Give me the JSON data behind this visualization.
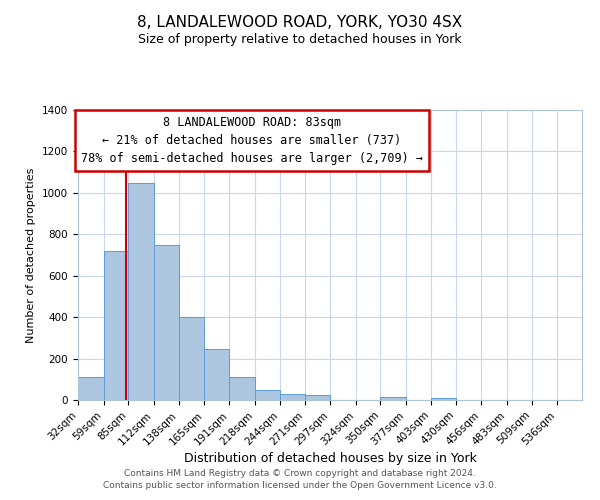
{
  "title1": "8, LANDALEWOOD ROAD, YORK, YO30 4SX",
  "title2": "Size of property relative to detached houses in York",
  "xlabel": "Distribution of detached houses by size in York",
  "ylabel": "Number of detached properties",
  "footer1": "Contains HM Land Registry data © Crown copyright and database right 2024.",
  "footer2": "Contains public sector information licensed under the Open Government Licence v3.0.",
  "bar_edges": [
    32,
    59,
    85,
    112,
    138,
    165,
    191,
    218,
    244,
    271,
    297,
    324,
    350,
    377,
    403,
    430,
    456,
    483,
    509,
    536,
    562
  ],
  "bar_heights": [
    110,
    720,
    1050,
    750,
    400,
    245,
    110,
    50,
    30,
    25,
    0,
    0,
    15,
    0,
    10,
    0,
    0,
    0,
    0,
    0
  ],
  "bar_color": "#adc6e0",
  "bar_edgecolor": "#5b9bd5",
  "red_line_x": 83,
  "red_line_color": "#cc0000",
  "annotation_line1": "8 LANDALEWOOD ROAD: 83sqm",
  "annotation_line2": "← 21% of detached houses are smaller (737)",
  "annotation_line3": "78% of semi-detached houses are larger (2,709) →",
  "annotation_box_edgecolor": "#cc0000",
  "annotation_box_facecolor": "#ffffff",
  "ylim": [
    0,
    1400
  ],
  "yticks": [
    0,
    200,
    400,
    600,
    800,
    1000,
    1200,
    1400
  ],
  "xlim_left": 32,
  "xlim_right": 562,
  "background_color": "#ffffff",
  "grid_color": "#c8d8e8",
  "title1_fontsize": 11,
  "title2_fontsize": 9,
  "xlabel_fontsize": 9,
  "ylabel_fontsize": 8,
  "tick_fontsize": 7.5,
  "annotation_fontsize": 8.5,
  "footer_fontsize": 6.5
}
